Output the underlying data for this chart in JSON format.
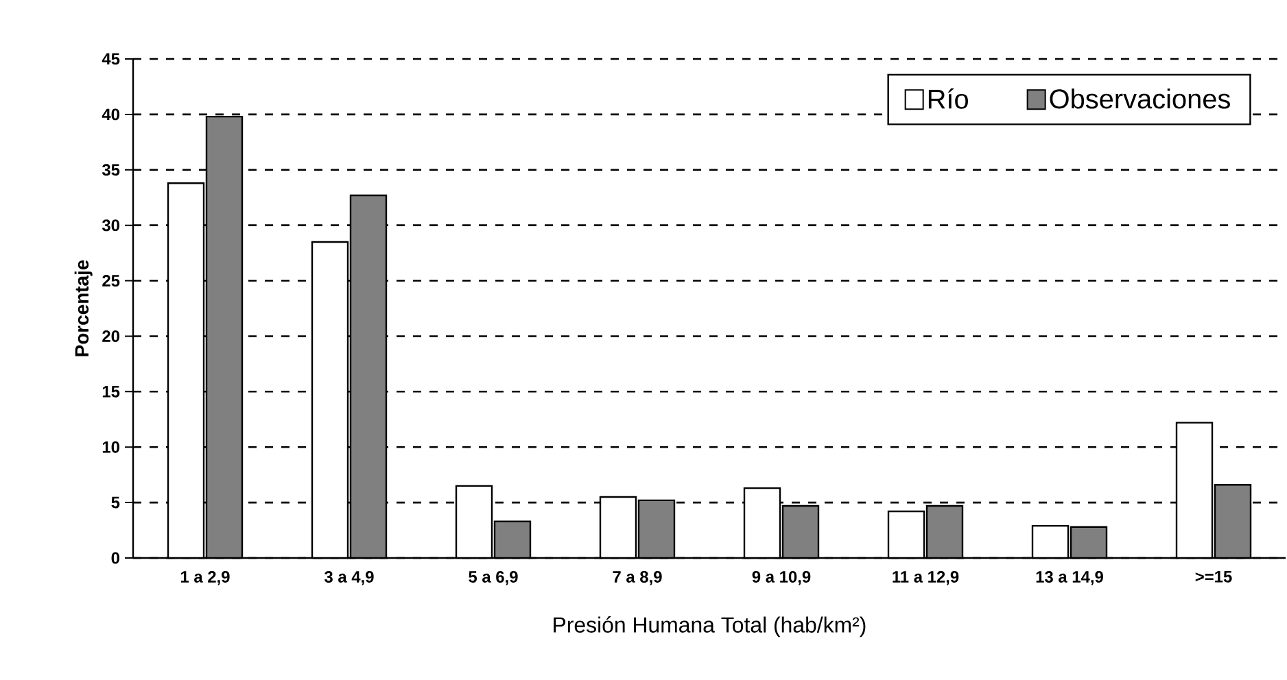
{
  "chart_data": {
    "type": "bar",
    "xlabel": "Presión Humana Total (hab/km²)",
    "ylabel": "Porcentaje",
    "categories": [
      "1 a 2,9",
      "3 a 4,9",
      "5 a 6,9",
      "7 a 8,9",
      "9 a 10,9",
      "11 a 12,9",
      "13 a 14,9",
      ">=15"
    ],
    "series": [
      {
        "name": "Río",
        "color": "#ffffff",
        "values": [
          33.8,
          28.5,
          6.5,
          5.5,
          6.3,
          4.2,
          2.9,
          12.2
        ]
      },
      {
        "name": "Observaciones",
        "color": "#808080",
        "values": [
          39.8,
          32.7,
          3.3,
          5.2,
          4.7,
          4.7,
          2.8,
          6.6
        ]
      }
    ],
    "ylim": [
      0,
      45
    ],
    "yticks": [
      0,
      5,
      10,
      15,
      20,
      25,
      30,
      35,
      40,
      45
    ],
    "grid": "y",
    "legend": "top right"
  }
}
